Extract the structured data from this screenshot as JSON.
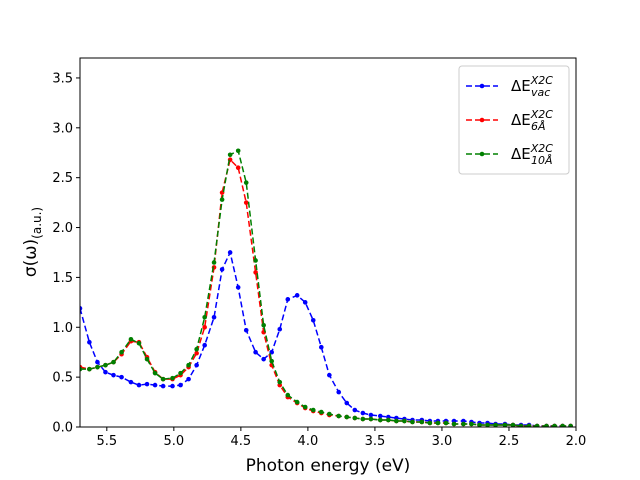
{
  "chart_data": {
    "type": "line",
    "title": "",
    "xlabel": "Photon energy (eV)",
    "ylabel_main": "σ(ω)",
    "ylabel_sub": "(a.u.)",
    "xlim": [
      5.7,
      2.0
    ],
    "ylim": [
      0.0,
      3.7
    ],
    "xticks": [
      5.5,
      5.0,
      4.5,
      4.0,
      3.5,
      3.0,
      2.5,
      2.0
    ],
    "xtick_labels": [
      "5.5",
      "5.0",
      "4.5",
      "4.0",
      "3.5",
      "3.0",
      "2.5",
      "2.0"
    ],
    "yticks": [
      0.0,
      0.5,
      1.0,
      1.5,
      2.0,
      2.5,
      3.0,
      3.5
    ],
    "ytick_labels": [
      "0.0",
      "0.5",
      "1.0",
      "1.5",
      "2.0",
      "2.5",
      "3.0",
      "3.5"
    ],
    "grid": false,
    "legend_position": "top-right",
    "x": [
      5.7,
      5.63,
      5.57,
      5.51,
      5.45,
      5.39,
      5.32,
      5.26,
      5.2,
      5.14,
      5.08,
      5.01,
      4.95,
      4.89,
      4.83,
      4.77,
      4.7,
      4.64,
      4.58,
      4.52,
      4.46,
      4.39,
      4.33,
      4.27,
      4.21,
      4.15,
      4.08,
      4.02,
      3.96,
      3.9,
      3.84,
      3.77,
      3.71,
      3.65,
      3.59,
      3.53,
      3.46,
      3.4,
      3.34,
      3.28,
      3.22,
      3.15,
      3.09,
      3.03,
      2.97,
      2.91,
      2.84,
      2.78,
      2.72,
      2.66,
      2.6,
      2.53,
      2.47,
      2.41,
      2.35,
      2.29,
      2.22,
      2.16,
      2.1,
      2.04
    ],
    "series": [
      {
        "name": "vac",
        "legend_base": "ΔE",
        "legend_sup": "X2C",
        "legend_sub": "vac",
        "color": "#0000ff",
        "values": [
          1.19,
          0.85,
          0.65,
          0.55,
          0.52,
          0.5,
          0.45,
          0.42,
          0.43,
          0.42,
          0.41,
          0.41,
          0.42,
          0.48,
          0.62,
          0.82,
          1.1,
          1.58,
          1.75,
          1.4,
          0.97,
          0.75,
          0.68,
          0.75,
          0.98,
          1.28,
          1.32,
          1.25,
          1.07,
          0.8,
          0.52,
          0.35,
          0.24,
          0.17,
          0.14,
          0.12,
          0.11,
          0.1,
          0.09,
          0.08,
          0.07,
          0.07,
          0.06,
          0.06,
          0.06,
          0.06,
          0.06,
          0.05,
          0.04,
          0.04,
          0.03,
          0.03,
          0.02,
          0.02,
          0.02,
          0.01,
          0.01,
          0.01,
          0.01,
          0.01
        ]
      },
      {
        "name": "6A",
        "legend_base": "ΔE",
        "legend_sup": "X2C",
        "legend_sub": "6Å",
        "color": "#ff0000",
        "values": [
          0.6,
          0.58,
          0.6,
          0.62,
          0.65,
          0.73,
          0.86,
          0.85,
          0.7,
          0.55,
          0.48,
          0.48,
          0.52,
          0.6,
          0.74,
          1.0,
          1.6,
          2.35,
          2.68,
          2.6,
          2.25,
          1.55,
          0.95,
          0.62,
          0.42,
          0.3,
          0.24,
          0.19,
          0.16,
          0.14,
          0.12,
          0.11,
          0.1,
          0.09,
          0.08,
          0.08,
          0.07,
          0.07,
          0.06,
          0.06,
          0.05,
          0.05,
          0.04,
          0.04,
          0.04,
          0.03,
          0.03,
          0.03,
          0.02,
          0.02,
          0.02,
          0.02,
          0.02,
          0.01,
          0.01,
          0.01,
          0.01,
          0.01,
          0.01,
          0.01
        ]
      },
      {
        "name": "10A",
        "legend_base": "ΔE",
        "legend_sup": "X2C",
        "legend_sub": "10Å",
        "color": "#008000",
        "values": [
          0.58,
          0.58,
          0.6,
          0.62,
          0.65,
          0.75,
          0.88,
          0.84,
          0.68,
          0.54,
          0.48,
          0.49,
          0.54,
          0.62,
          0.78,
          1.1,
          1.65,
          2.28,
          2.73,
          2.77,
          2.45,
          1.67,
          1.02,
          0.66,
          0.45,
          0.32,
          0.25,
          0.2,
          0.17,
          0.15,
          0.13,
          0.11,
          0.1,
          0.09,
          0.08,
          0.08,
          0.07,
          0.07,
          0.06,
          0.06,
          0.05,
          0.05,
          0.04,
          0.04,
          0.04,
          0.03,
          0.03,
          0.03,
          0.02,
          0.02,
          0.02,
          0.02,
          0.02,
          0.01,
          0.01,
          0.01,
          0.01,
          0.01,
          0.01,
          0.01
        ]
      }
    ]
  }
}
